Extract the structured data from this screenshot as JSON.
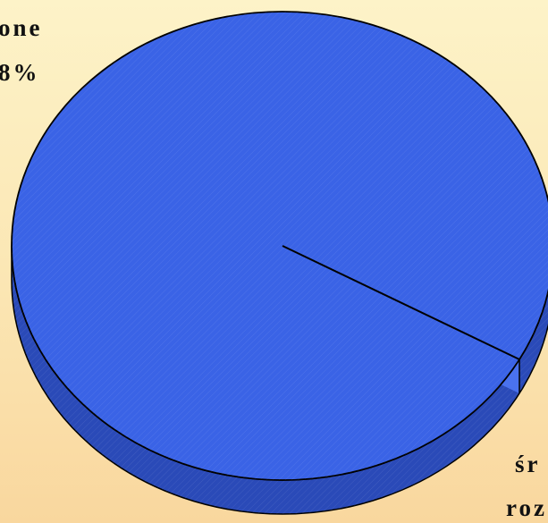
{
  "chart_data": {
    "type": "pie",
    "style": "3d",
    "title": "",
    "slices": [
      {
        "label_lines": [
          "one",
          "8%"
        ],
        "label_position": "top-left",
        "color": "#3a63e6"
      },
      {
        "label_lines": [
          "śr",
          "roz"
        ],
        "label_position": "bottom-right",
        "color": "#3a63e6"
      }
    ],
    "legend": "none",
    "colors": {
      "face": "#3a63e6",
      "side": "#2a4ab8",
      "outline": "#000000",
      "background": "#fbe6b3"
    }
  }
}
